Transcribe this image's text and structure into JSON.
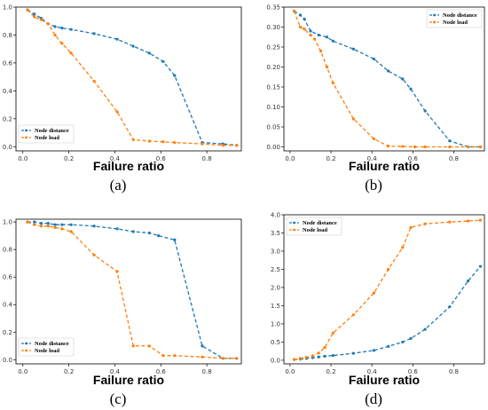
{
  "chart_data": [
    {
      "panel_label": "(a)",
      "type": "line",
      "xlabel": "Failure ratio",
      "ylabel": "",
      "xlim": [
        -0.03,
        0.95
      ],
      "ylim": [
        -0.03,
        1.0
      ],
      "xticks": [
        "0.0",
        "0.2",
        "0.4",
        "0.6",
        "0.8"
      ],
      "yticks": [
        "0.0",
        "0.2",
        "0.4",
        "0.6",
        "0.8",
        "1.0"
      ],
      "xtick_values": [
        0,
        0.2,
        0.4,
        0.6,
        0.8
      ],
      "ytick_values": [
        0,
        0.2,
        0.4,
        0.6,
        0.8,
        1.0
      ],
      "legend_position": "bottom-left",
      "series": [
        {
          "name": "Node distance",
          "color": "#1f77b4",
          "x": [
            0.02,
            0.05,
            0.08,
            0.11,
            0.14,
            0.17,
            0.21,
            0.31,
            0.41,
            0.48,
            0.55,
            0.61,
            0.66,
            0.78,
            0.87,
            0.93
          ],
          "y": [
            0.98,
            0.95,
            0.92,
            0.88,
            0.86,
            0.85,
            0.84,
            0.81,
            0.77,
            0.72,
            0.67,
            0.61,
            0.51,
            0.03,
            0.02,
            0.01
          ]
        },
        {
          "name": "Node load",
          "color": "#ff7f0e",
          "x": [
            0.02,
            0.05,
            0.08,
            0.11,
            0.14,
            0.17,
            0.21,
            0.31,
            0.41,
            0.48,
            0.55,
            0.61,
            0.66,
            0.78,
            0.87,
            0.93
          ],
          "y": [
            0.98,
            0.93,
            0.91,
            0.88,
            0.8,
            0.74,
            0.67,
            0.47,
            0.25,
            0.05,
            0.04,
            0.035,
            0.03,
            0.02,
            0.01,
            0.01
          ]
        }
      ]
    },
    {
      "panel_label": "(b)",
      "type": "line",
      "xlabel": "Failure ratio",
      "ylabel": "",
      "xlim": [
        -0.03,
        0.95
      ],
      "ylim": [
        -0.01,
        0.35
      ],
      "xticks": [
        "0.0",
        "0.2",
        "0.4",
        "0.6",
        "0.8"
      ],
      "yticks": [
        "0.00",
        "0.05",
        "0.10",
        "0.15",
        "0.20",
        "0.25",
        "0.30",
        "0.35"
      ],
      "xtick_values": [
        0,
        0.2,
        0.4,
        0.6,
        0.8
      ],
      "ytick_values": [
        0,
        0.05,
        0.1,
        0.15,
        0.2,
        0.25,
        0.3,
        0.35
      ],
      "legend_position": "top-right",
      "series": [
        {
          "name": "Node distance",
          "color": "#1f77b4",
          "x": [
            0.02,
            0.05,
            0.07,
            0.1,
            0.14,
            0.18,
            0.21,
            0.31,
            0.41,
            0.48,
            0.55,
            0.59,
            0.66,
            0.78,
            0.87,
            0.93
          ],
          "y": [
            0.34,
            0.33,
            0.32,
            0.29,
            0.28,
            0.275,
            0.265,
            0.245,
            0.22,
            0.19,
            0.17,
            0.145,
            0.09,
            0.015,
            0.0,
            0.0
          ]
        },
        {
          "name": "Node load",
          "color": "#ff7f0e",
          "x": [
            0.02,
            0.05,
            0.07,
            0.1,
            0.12,
            0.15,
            0.18,
            0.21,
            0.31,
            0.41,
            0.48,
            0.55,
            0.61,
            0.66,
            0.78,
            0.87,
            0.93
          ],
          "y": [
            0.34,
            0.3,
            0.295,
            0.28,
            0.27,
            0.24,
            0.2,
            0.16,
            0.07,
            0.02,
            0.002,
            0.001,
            0.0,
            0.0,
            0.0,
            0.0,
            0.0
          ]
        }
      ]
    },
    {
      "panel_label": "(c)",
      "type": "line",
      "xlabel": "Failure ratio",
      "ylabel": "",
      "xlim": [
        -0.03,
        0.95
      ],
      "ylim": [
        -0.03,
        1.02
      ],
      "xticks": [
        "0.0",
        "0.2",
        "0.4",
        "0.6",
        "0.8"
      ],
      "yticks": [
        "0.0",
        "0.2",
        "0.4",
        "0.6",
        "0.8",
        "1.0"
      ],
      "xtick_values": [
        0,
        0.2,
        0.4,
        0.6,
        0.8
      ],
      "ytick_values": [
        0,
        0.2,
        0.4,
        0.6,
        0.8,
        1.0
      ],
      "legend_position": "bottom-left",
      "series": [
        {
          "name": "Node distance",
          "color": "#1f77b4",
          "x": [
            0.02,
            0.05,
            0.08,
            0.11,
            0.14,
            0.17,
            0.21,
            0.31,
            0.41,
            0.48,
            0.55,
            0.59,
            0.66,
            0.78,
            0.87,
            0.93
          ],
          "y": [
            1.0,
            1.0,
            0.99,
            0.99,
            0.98,
            0.98,
            0.98,
            0.97,
            0.95,
            0.93,
            0.92,
            0.9,
            0.87,
            0.1,
            0.01,
            0.01
          ]
        },
        {
          "name": "Node load",
          "color": "#ff7f0e",
          "x": [
            0.02,
            0.05,
            0.08,
            0.11,
            0.14,
            0.17,
            0.21,
            0.31,
            0.41,
            0.48,
            0.55,
            0.61,
            0.66,
            0.78,
            0.87,
            0.93
          ],
          "y": [
            1.0,
            0.98,
            0.97,
            0.97,
            0.96,
            0.95,
            0.93,
            0.76,
            0.64,
            0.1,
            0.1,
            0.03,
            0.03,
            0.02,
            0.01,
            0.01
          ]
        }
      ]
    },
    {
      "panel_label": "(d)",
      "type": "line",
      "xlabel": "Failure ratio",
      "ylabel": "",
      "xlim": [
        -0.03,
        0.95
      ],
      "ylim": [
        -0.1,
        4.0
      ],
      "xticks": [
        "0.0",
        "0.2",
        "0.4",
        "0.6",
        "0.8"
      ],
      "yticks": [
        "0.0",
        "0.5",
        "1.0",
        "1.5",
        "2.0",
        "2.5",
        "3.0",
        "3.5",
        "4.0"
      ],
      "xtick_values": [
        0,
        0.2,
        0.4,
        0.6,
        0.8
      ],
      "ytick_values": [
        0,
        0.5,
        1.0,
        1.5,
        2.0,
        2.5,
        3.0,
        3.5,
        4.0
      ],
      "legend_position": "top-left",
      "series": [
        {
          "name": "Node distance",
          "color": "#1f77b4",
          "x": [
            0.02,
            0.05,
            0.08,
            0.11,
            0.14,
            0.17,
            0.21,
            0.31,
            0.41,
            0.48,
            0.55,
            0.59,
            0.66,
            0.78,
            0.87,
            0.93
          ],
          "y": [
            0.02,
            0.03,
            0.05,
            0.07,
            0.09,
            0.11,
            0.13,
            0.19,
            0.27,
            0.38,
            0.5,
            0.6,
            0.85,
            1.47,
            2.18,
            2.58
          ]
        },
        {
          "name": "Node load",
          "color": "#ff7f0e",
          "x": [
            0.02,
            0.05,
            0.08,
            0.11,
            0.14,
            0.17,
            0.21,
            0.31,
            0.41,
            0.48,
            0.55,
            0.59,
            0.66,
            0.78,
            0.87,
            0.93
          ],
          "y": [
            0.02,
            0.05,
            0.08,
            0.12,
            0.2,
            0.35,
            0.75,
            1.25,
            1.85,
            2.5,
            3.1,
            3.65,
            3.75,
            3.8,
            3.83,
            3.85
          ]
        }
      ]
    }
  ]
}
